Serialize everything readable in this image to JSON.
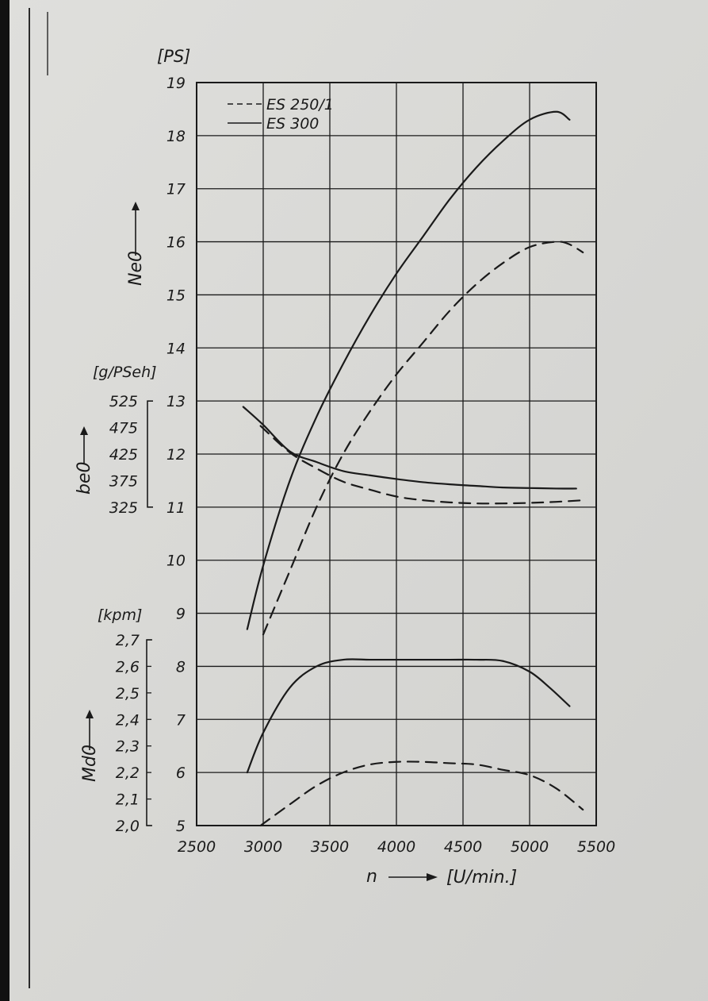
{
  "chart_data": {
    "type": "line",
    "x_label": "n",
    "x_unit": "[U/min.]",
    "x_ticks": [
      2500,
      3000,
      3500,
      4000,
      4500,
      5000,
      5500
    ],
    "xlim": [
      2500,
      5500
    ],
    "grid": true,
    "legend_position": "top-left",
    "legend": [
      {
        "name": "ES 250/1",
        "style": "dashed"
      },
      {
        "name": "ES 300",
        "style": "solid"
      }
    ],
    "axes": {
      "power": {
        "label": "Ne0",
        "unit": "[PS]",
        "ticks": [
          "5",
          "6",
          "7",
          "8",
          "9",
          "10",
          "11",
          "12",
          "13",
          "14",
          "15",
          "16",
          "17",
          "18",
          "19"
        ],
        "ylim": [
          5,
          19
        ]
      },
      "consumption": {
        "label": "be0",
        "unit": "[g/PSeh]",
        "ticks": [
          "525",
          "475",
          "425",
          "375",
          "325"
        ],
        "ylim": [
          325,
          525
        ]
      },
      "torque": {
        "label": "Md0",
        "unit": "[kpm]",
        "ticks": [
          "2,7",
          "2,6",
          "2,5",
          "2,4",
          "2,3",
          "2,2",
          "2,1",
          "2,0"
        ],
        "ylim": [
          2.0,
          2.7
        ]
      }
    },
    "series": [
      {
        "name": "ES 300",
        "quantity": "power",
        "style": "solid",
        "x": [
          2880,
          3000,
          3200,
          3400,
          3600,
          3800,
          4000,
          4200,
          4400,
          4600,
          4800,
          5000,
          5200,
          5300
        ],
        "y": [
          8.7,
          9.9,
          11.5,
          12.7,
          13.7,
          14.6,
          15.4,
          16.1,
          16.8,
          17.4,
          17.9,
          18.3,
          18.45,
          18.3
        ]
      },
      {
        "name": "ES 250/1",
        "quantity": "power",
        "style": "dashed",
        "x": [
          3000,
          3200,
          3400,
          3600,
          3800,
          4000,
          4200,
          4400,
          4600,
          4800,
          5000,
          5200,
          5300,
          5400
        ],
        "y": [
          8.6,
          9.8,
          11.0,
          12.0,
          12.8,
          13.5,
          14.1,
          14.7,
          15.2,
          15.6,
          15.9,
          16.0,
          15.95,
          15.8
        ]
      },
      {
        "name": "ES 300",
        "quantity": "consumption",
        "style": "solid",
        "x": [
          2850,
          3000,
          3200,
          3400,
          3600,
          3800,
          4000,
          4200,
          4400,
          4600,
          4800,
          5000,
          5200,
          5350
        ],
        "y": [
          514,
          480,
          430,
          410,
          393,
          385,
          378,
          372,
          368,
          365,
          362,
          361,
          360,
          360
        ]
      },
      {
        "name": "ES 250/1",
        "quantity": "consumption",
        "style": "dashed",
        "x": [
          2980,
          3200,
          3400,
          3600,
          3800,
          4000,
          4200,
          4400,
          4600,
          4800,
          5000,
          5200,
          5400
        ],
        "y": [
          478,
          428,
          398,
          373,
          358,
          345,
          338,
          334,
          332,
          332,
          333,
          335,
          338
        ]
      },
      {
        "name": "ES 300",
        "quantity": "torque",
        "style": "solid",
        "x": [
          2880,
          3000,
          3200,
          3400,
          3600,
          3800,
          4000,
          4200,
          4400,
          4600,
          4800,
          5000,
          5150,
          5300
        ],
        "y": [
          2.2,
          2.35,
          2.52,
          2.6,
          2.625,
          2.625,
          2.625,
          2.625,
          2.625,
          2.625,
          2.62,
          2.58,
          2.52,
          2.45
        ]
      },
      {
        "name": "ES 250/1",
        "quantity": "torque",
        "style": "dashed",
        "x": [
          2980,
          3200,
          3400,
          3600,
          3800,
          4000,
          4200,
          4400,
          4600,
          4800,
          5000,
          5200,
          5400
        ],
        "y": [
          2.0,
          2.08,
          2.15,
          2.2,
          2.23,
          2.24,
          2.24,
          2.235,
          2.23,
          2.21,
          2.19,
          2.14,
          2.06
        ]
      }
    ]
  }
}
